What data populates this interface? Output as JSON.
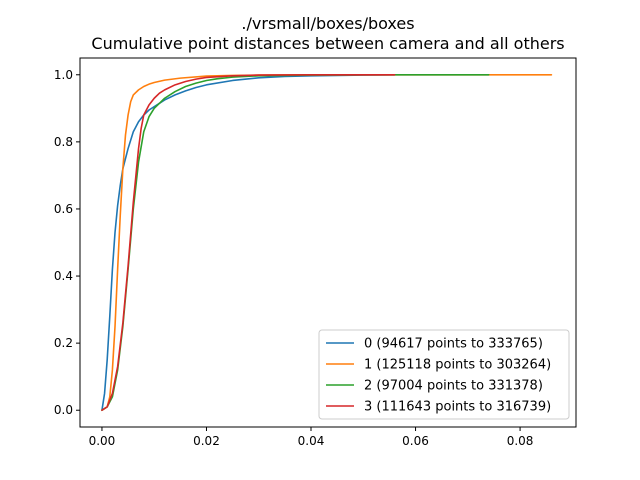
{
  "chart_data": {
    "type": "line",
    "title": "./vrsmall/boxes/boxes",
    "subtitle": "Cumulative point distances between camera and all others",
    "xlabel": "",
    "ylabel": "",
    "xlim": [
      -0.0042,
      0.0907
    ],
    "ylim": [
      -0.05,
      1.05
    ],
    "x_ticks": [
      "0.00",
      "0.02",
      "0.04",
      "0.06",
      "0.08"
    ],
    "y_ticks": [
      "0.0",
      "0.2",
      "0.4",
      "0.6",
      "0.8",
      "1.0"
    ],
    "grid": false,
    "legend_position": "lower-right",
    "series": [
      {
        "name": "0 (94617 points to 333765)",
        "color": "#1f77b4",
        "x": [
          0.0,
          0.0005,
          0.001,
          0.0015,
          0.002,
          0.0025,
          0.003,
          0.0035,
          0.004,
          0.005,
          0.006,
          0.007,
          0.008,
          0.009,
          0.01,
          0.012,
          0.014,
          0.016,
          0.018,
          0.02,
          0.025,
          0.03,
          0.035,
          0.04,
          0.05,
          0.056
        ],
        "y": [
          0.0,
          0.05,
          0.15,
          0.28,
          0.42,
          0.53,
          0.61,
          0.67,
          0.72,
          0.78,
          0.83,
          0.86,
          0.88,
          0.895,
          0.905,
          0.925,
          0.94,
          0.952,
          0.962,
          0.97,
          0.983,
          0.991,
          0.995,
          0.997,
          0.999,
          1.0
        ]
      },
      {
        "name": "1 (125118 points to 303264)",
        "color": "#ff7f0e",
        "x": [
          0.0,
          0.001,
          0.0015,
          0.002,
          0.0025,
          0.003,
          0.0035,
          0.004,
          0.0045,
          0.005,
          0.0055,
          0.006,
          0.007,
          0.008,
          0.009,
          0.01,
          0.012,
          0.015,
          0.02,
          0.025,
          0.03,
          0.04,
          0.06,
          0.086
        ],
        "y": [
          0.0,
          0.01,
          0.04,
          0.12,
          0.25,
          0.42,
          0.58,
          0.72,
          0.82,
          0.88,
          0.92,
          0.94,
          0.955,
          0.965,
          0.972,
          0.977,
          0.984,
          0.99,
          0.996,
          0.998,
          0.999,
          1.0,
          1.0,
          1.0
        ]
      },
      {
        "name": "2 (97004 points to 331378)",
        "color": "#2ca02c",
        "x": [
          0.0,
          0.001,
          0.002,
          0.003,
          0.004,
          0.005,
          0.006,
          0.007,
          0.008,
          0.009,
          0.01,
          0.011,
          0.012,
          0.014,
          0.016,
          0.018,
          0.02,
          0.022,
          0.025,
          0.03,
          0.04,
          0.05,
          0.074
        ],
        "y": [
          0.0,
          0.01,
          0.04,
          0.12,
          0.25,
          0.42,
          0.6,
          0.74,
          0.83,
          0.875,
          0.9,
          0.915,
          0.93,
          0.95,
          0.965,
          0.975,
          0.983,
          0.988,
          0.993,
          0.997,
          0.999,
          1.0,
          1.0
        ]
      },
      {
        "name": "3 (111643 points to 316739)",
        "color": "#d62728",
        "x": [
          0.0,
          0.001,
          0.002,
          0.003,
          0.004,
          0.005,
          0.006,
          0.007,
          0.0075,
          0.008,
          0.009,
          0.01,
          0.011,
          0.012,
          0.014,
          0.016,
          0.018,
          0.02,
          0.025,
          0.03,
          0.04,
          0.056
        ],
        "y": [
          0.0,
          0.01,
          0.05,
          0.13,
          0.26,
          0.43,
          0.62,
          0.78,
          0.84,
          0.88,
          0.91,
          0.93,
          0.945,
          0.955,
          0.97,
          0.98,
          0.987,
          0.992,
          0.997,
          0.999,
          1.0,
          1.0
        ]
      }
    ]
  }
}
